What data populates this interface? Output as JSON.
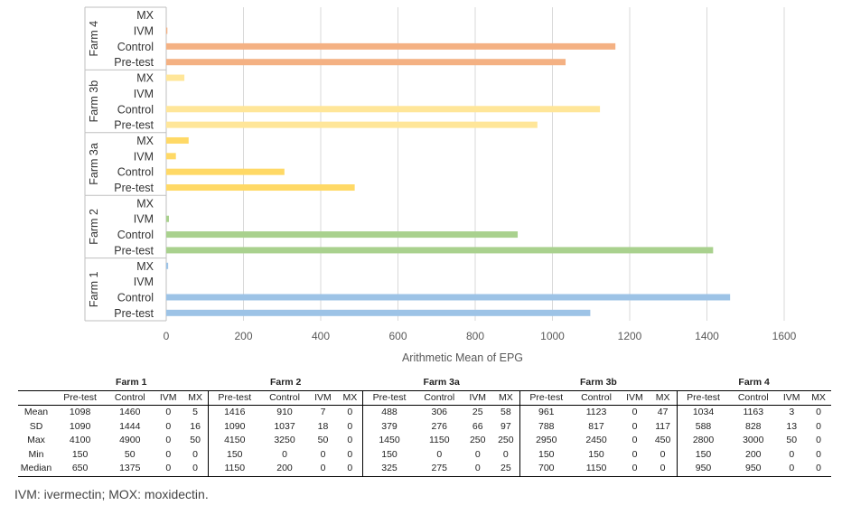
{
  "chart_data": {
    "type": "bar",
    "orientation": "horizontal",
    "xlabel": "Arithmetic Mean of EPG",
    "xlim": [
      0,
      1600
    ],
    "x_ticks": [
      "0",
      "200",
      "400",
      "600",
      "800",
      "1000",
      "1200",
      "1400",
      "1600"
    ],
    "grid": true,
    "groups": [
      {
        "label": "Farm 4",
        "color": "#f4b183",
        "bars": [
          {
            "label": "MX",
            "value": 0
          },
          {
            "label": "IVM",
            "value": 3
          },
          {
            "label": "Control",
            "value": 1163
          },
          {
            "label": "Pre-test",
            "value": 1034
          }
        ]
      },
      {
        "label": "Farm 3b",
        "color": "#ffe699",
        "bars": [
          {
            "label": "MX",
            "value": 47
          },
          {
            "label": "IVM",
            "value": 0
          },
          {
            "label": "Control",
            "value": 1123
          },
          {
            "label": "Pre-test",
            "value": 961
          }
        ]
      },
      {
        "label": "Farm 3a",
        "color": "#ffd966",
        "bars": [
          {
            "label": "MX",
            "value": 58
          },
          {
            "label": "IVM",
            "value": 25
          },
          {
            "label": "Control",
            "value": 306
          },
          {
            "label": "Pre-test",
            "value": 488
          }
        ]
      },
      {
        "label": "Farm 2",
        "color": "#a9d18e",
        "bars": [
          {
            "label": "MX",
            "value": 0
          },
          {
            "label": "IVM",
            "value": 7
          },
          {
            "label": "Control",
            "value": 910
          },
          {
            "label": "Pre-test",
            "value": 1416
          }
        ]
      },
      {
        "label": "Farm 1",
        "color": "#9dc3e6",
        "bars": [
          {
            "label": "MX",
            "value": 5
          },
          {
            "label": "IVM",
            "value": 0
          },
          {
            "label": "Control",
            "value": 1460
          },
          {
            "label": "Pre-test",
            "value": 1098
          }
        ]
      }
    ]
  },
  "table": {
    "farms": [
      "Farm 1",
      "Farm 2",
      "Farm 3a",
      "Farm 3b",
      "Farm 4"
    ],
    "columns": [
      "Pre-test",
      "Control",
      "IVM",
      "MX"
    ],
    "rows": [
      {
        "label": "Mean",
        "values": [
          [
            "1098",
            "1460",
            "0",
            "5"
          ],
          [
            "1416",
            "910",
            "7",
            "0"
          ],
          [
            "488",
            "306",
            "25",
            "58"
          ],
          [
            "961",
            "1123",
            "0",
            "47"
          ],
          [
            "1034",
            "1163",
            "3",
            "0"
          ]
        ]
      },
      {
        "label": "SD",
        "values": [
          [
            "1090",
            "1444",
            "0",
            "16"
          ],
          [
            "1090",
            "1037",
            "18",
            "0"
          ],
          [
            "379",
            "276",
            "66",
            "97"
          ],
          [
            "788",
            "817",
            "0",
            "117"
          ],
          [
            "588",
            "828",
            "13",
            "0"
          ]
        ]
      },
      {
        "label": "Max",
        "values": [
          [
            "4100",
            "4900",
            "0",
            "50"
          ],
          [
            "4150",
            "3250",
            "50",
            "0"
          ],
          [
            "1450",
            "1150",
            "250",
            "250"
          ],
          [
            "2950",
            "2450",
            "0",
            "450"
          ],
          [
            "2800",
            "3000",
            "50",
            "0"
          ]
        ]
      },
      {
        "label": "Min",
        "values": [
          [
            "150",
            "50",
            "0",
            "0"
          ],
          [
            "150",
            "0",
            "0",
            "0"
          ],
          [
            "150",
            "0",
            "0",
            "0"
          ],
          [
            "150",
            "150",
            "0",
            "0"
          ],
          [
            "150",
            "200",
            "0",
            "0"
          ]
        ]
      },
      {
        "label": "Median",
        "values": [
          [
            "650",
            "1375",
            "0",
            "0"
          ],
          [
            "1150",
            "200",
            "0",
            "0"
          ],
          [
            "325",
            "275",
            "0",
            "25"
          ],
          [
            "700",
            "1150",
            "0",
            "0"
          ],
          [
            "950",
            "950",
            "0",
            "0"
          ]
        ]
      }
    ]
  },
  "footnote": "IVM: ivermectin; MOX: moxidectin."
}
